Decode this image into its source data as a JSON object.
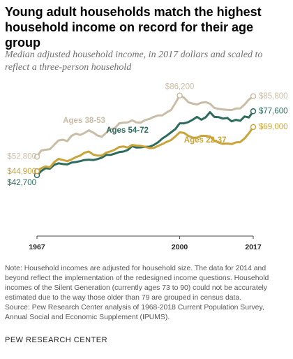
{
  "title": "Young adult households match the highest household income on record for their age group",
  "subtitle": "Median adjusted household income, in 2017 dollars and scaled to reflect a three-person household",
  "notes": {
    "note": "Note: Household incomes are adjusted for household size. The data for 2014 and beyond reflect the implementation of the redesigned income questions. Household incomes of the Silent Generation (currently ages 73 to 90) could not be accurately estimated due to the way those older than 79 are grouped in census data.",
    "source": "Source: Pew Research Center analysis of 1968-2018 Current Population Survey, Annual Social and Economic Supplement (IPUMS)."
  },
  "footer": "PEW RESEARCH CENTER",
  "colors": {
    "ages_38_53": "#c9bda7",
    "ages_54_72": "#2d6b5c",
    "ages_22_37": "#c9a43a",
    "axis": "#444444"
  },
  "chart_data": {
    "type": "line",
    "title": "Young adult households match the highest household income on record for their age group",
    "subtitle": "Median adjusted household income, in 2017 dollars and scaled to reflect a three-person household",
    "xlabel": "",
    "ylabel": "",
    "x_ticks": [
      "1967",
      "2000",
      "2017"
    ],
    "xlim": [
      1967,
      2017
    ],
    "ylim": [
      36000,
      92000
    ],
    "grid": false,
    "legend": "none",
    "x": [
      1967,
      1968,
      1969,
      1970,
      1971,
      1972,
      1973,
      1974,
      1975,
      1976,
      1977,
      1978,
      1979,
      1980,
      1981,
      1982,
      1983,
      1984,
      1985,
      1986,
      1987,
      1988,
      1989,
      1990,
      1991,
      1992,
      1993,
      1994,
      1995,
      1996,
      1997,
      1998,
      1999,
      2000,
      2001,
      2002,
      2003,
      2004,
      2005,
      2006,
      2007,
      2008,
      2009,
      2010,
      2011,
      2012,
      2013,
      2014,
      2015,
      2016,
      2017
    ],
    "series": [
      {
        "name": "Ages 38-53",
        "color_key": "ages_38_53",
        "endpoint_labels": {
          "first": "$52,800",
          "peak": "$86,200",
          "last": "$85,800"
        },
        "values": [
          52800,
          56200,
          56600,
          56900,
          59400,
          61700,
          62100,
          61300,
          64200,
          65400,
          64700,
          65800,
          67200,
          66000,
          64400,
          63700,
          65800,
          67900,
          68400,
          71000,
          71400,
          71500,
          72700,
          71500,
          71400,
          72800,
          73400,
          74500,
          75300,
          75400,
          77000,
          78300,
          82100,
          86200,
          85000,
          82500,
          81800,
          81300,
          82300,
          82600,
          81700,
          79500,
          78900,
          78600,
          78400,
          78300,
          79100,
          79200,
          81300,
          84000,
          85800
        ]
      },
      {
        "name": "Ages 54-72",
        "color_key": "ages_54_72",
        "endpoint_labels": {
          "first": "$42,700",
          "last": "$77,600"
        },
        "values": [
          42700,
          45000,
          46500,
          46300,
          48400,
          49200,
          48800,
          48600,
          49600,
          49900,
          50400,
          51000,
          51200,
          51000,
          51500,
          52300,
          53800,
          53800,
          54500,
          55300,
          55600,
          56500,
          58600,
          57800,
          57900,
          58200,
          58300,
          59200,
          60700,
          62800,
          64300,
          66100,
          67900,
          71000,
          71000,
          71700,
          73000,
          74500,
          73000,
          74300,
          77100,
          74500,
          74400,
          73600,
          74000,
          72100,
          72900,
          72400,
          74800,
          74200,
          77600
        ]
      },
      {
        "name": "Ages 22-37",
        "color_key": "ages_22_37",
        "endpoint_labels": {
          "first": "$44,900",
          "last": "$69,000"
        },
        "values": [
          44900,
          46500,
          47500,
          47000,
          49900,
          51600,
          51000,
          50400,
          51300,
          52600,
          53400,
          55000,
          55600,
          54000,
          53400,
          53400,
          55000,
          55700,
          56600,
          58100,
          58400,
          57800,
          59200,
          58900,
          58700,
          58200,
          57500,
          57600,
          58700,
          59700,
          60900,
          61900,
          63900,
          66100,
          65800,
          64200,
          63200,
          63200,
          64200,
          64200,
          63800,
          61600,
          60500,
          59800,
          60000,
          59700,
          60600,
          60800,
          62800,
          65600,
          69000
        ]
      }
    ]
  }
}
